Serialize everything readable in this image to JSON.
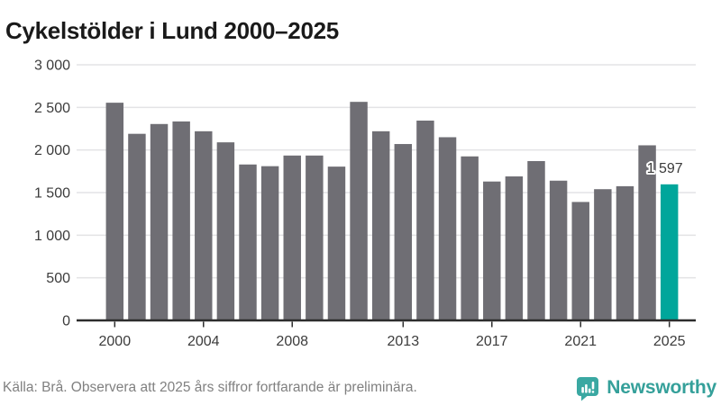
{
  "title": "Cykelstölder i Lund 2000–2025",
  "footer": {
    "source": "Källa: Brå. Observera att 2025 års siffror fortfarande är preliminära.",
    "brand": "Newsworthy"
  },
  "colors": {
    "bar": "#6f6e74",
    "highlight": "#00a69b",
    "grid": "#e3e3e5",
    "axis": "#2d2d2d",
    "tick_label": "#3c3c3c",
    "title": "#1a1a1a",
    "footer_text": "#808080",
    "brand_teal": "#35a09a",
    "logo_bubble": "#3aa8a2",
    "annotation": "#3b3b3b"
  },
  "chart_data": {
    "type": "bar",
    "title": "Cykelstölder i Lund 2000–2025",
    "xlabel": "",
    "ylabel": "",
    "ylim": [
      0,
      3000
    ],
    "grid": true,
    "legend": false,
    "categories": [
      2000,
      2001,
      2002,
      2003,
      2004,
      2005,
      2006,
      2007,
      2008,
      2009,
      2010,
      2011,
      2012,
      2013,
      2014,
      2015,
      2016,
      2017,
      2018,
      2019,
      2020,
      2021,
      2022,
      2023,
      2024,
      2025
    ],
    "values": [
      2555,
      2190,
      2305,
      2335,
      2220,
      2090,
      1830,
      1810,
      1935,
      1935,
      1805,
      2565,
      2220,
      2070,
      2345,
      2150,
      1925,
      1630,
      1690,
      1870,
      1640,
      1390,
      1540,
      1575,
      2055,
      1597
    ],
    "highlight_index": 25,
    "annotation": {
      "index": 25,
      "text": "1 597"
    },
    "yticks": [
      {
        "value": 0,
        "label": "0"
      },
      {
        "value": 500,
        "label": "500"
      },
      {
        "value": 1000,
        "label": "1 000"
      },
      {
        "value": 1500,
        "label": "1 500"
      },
      {
        "value": 2000,
        "label": "2 000"
      },
      {
        "value": 2500,
        "label": "2 500"
      },
      {
        "value": 3000,
        "label": "3 000"
      }
    ],
    "xtick_years": [
      2000,
      2004,
      2008,
      2013,
      2017,
      2021,
      2025
    ]
  }
}
